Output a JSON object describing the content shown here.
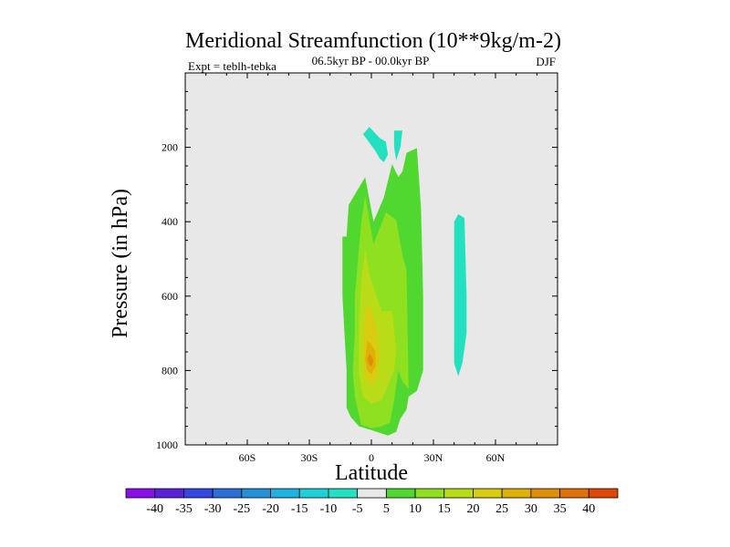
{
  "chart_data": {
    "type": "contour",
    "title": "Meridional Streamfunction (10**9kg/m-2)",
    "subtitle": "06.5kyr BP - 00.0kyr BP",
    "left_label": "Expt = teblh-tebka",
    "right_label": "DJF",
    "xlabel": "Latitude",
    "ylabel": "Pressure (in hPa)",
    "xlim": [
      -90,
      90
    ],
    "ylim": [
      1000,
      0
    ],
    "x_ticks": [
      {
        "value": -60,
        "label": "60S"
      },
      {
        "value": -30,
        "label": "30S"
      },
      {
        "value": 0,
        "label": "0"
      },
      {
        "value": 30,
        "label": "30N"
      },
      {
        "value": 60,
        "label": "60N"
      }
    ],
    "y_ticks": [
      {
        "value": 200,
        "label": "200"
      },
      {
        "value": 400,
        "label": "400"
      },
      {
        "value": 600,
        "label": "600"
      },
      {
        "value": 800,
        "label": "800"
      },
      {
        "value": 1000,
        "label": "1000"
      }
    ],
    "background_color": "#e8e8e8",
    "contour_levels": [
      -40,
      -35,
      -30,
      -25,
      -20,
      -15,
      -10,
      -5,
      5,
      10,
      15,
      20,
      25,
      30,
      35,
      40
    ],
    "colorbar_colors": [
      "#8b10e8",
      "#5a22d8",
      "#3346e0",
      "#2a6ed8",
      "#2490d8",
      "#1eb2e0",
      "#1ed0d8",
      "#22e0c0",
      "#e8e8e8",
      "#50d830",
      "#8ee020",
      "#b8dc18",
      "#d8cc10",
      "#e0b008",
      "#e09008",
      "#e07008",
      "#e04808"
    ],
    "regions": [
      {
        "level": 5,
        "color": "#50d830",
        "points": [
          [
            -14,
            440
          ],
          [
            -12,
            440
          ],
          [
            -11,
            355
          ],
          [
            -3,
            280
          ],
          [
            1,
            400
          ],
          [
            6,
            335
          ],
          [
            10,
            245
          ],
          [
            13,
            280
          ],
          [
            15,
            265
          ],
          [
            17,
            215
          ],
          [
            22,
            202
          ],
          [
            24,
            365
          ],
          [
            25,
            600
          ],
          [
            25,
            800
          ],
          [
            22,
            855
          ],
          [
            18,
            870
          ],
          [
            17,
            905
          ],
          [
            14,
            930
          ],
          [
            12,
            965
          ],
          [
            8,
            975
          ],
          [
            0,
            960
          ],
          [
            -6,
            950
          ],
          [
            -10,
            925
          ],
          [
            -12,
            900
          ],
          [
            -12,
            800
          ],
          [
            -13,
            700
          ],
          [
            -14,
            600
          ]
        ]
      },
      {
        "level": 10,
        "color": "#8ee020",
        "points": [
          [
            -8,
            600
          ],
          [
            -5,
            405
          ],
          [
            -3,
            330
          ],
          [
            1,
            460
          ],
          [
            7,
            375
          ],
          [
            12,
            395
          ],
          [
            15,
            490
          ],
          [
            17,
            530
          ],
          [
            18,
            850
          ],
          [
            15,
            830
          ],
          [
            13,
            800
          ],
          [
            11,
            880
          ],
          [
            9,
            940
          ],
          [
            5,
            950
          ],
          [
            0,
            955
          ],
          [
            -5,
            945
          ],
          [
            -8,
            870
          ],
          [
            -9,
            800
          ],
          [
            -8,
            700
          ]
        ]
      },
      {
        "level": 15,
        "color": "#b8dc18",
        "points": [
          [
            -5,
            560
          ],
          [
            -3,
            475
          ],
          [
            -1,
            540
          ],
          [
            2,
            590
          ],
          [
            5,
            640
          ],
          [
            10,
            640
          ],
          [
            12,
            740
          ],
          [
            11,
            800
          ],
          [
            8,
            840
          ],
          [
            5,
            880
          ],
          [
            0,
            890
          ],
          [
            -4,
            870
          ],
          [
            -6,
            810
          ],
          [
            -6,
            700
          ]
        ]
      },
      {
        "level": 20,
        "color": "#d8cc10",
        "points": [
          [
            -3,
            640
          ],
          [
            -1,
            620
          ],
          [
            1,
            660
          ],
          [
            3,
            700
          ],
          [
            4,
            760
          ],
          [
            3,
            820
          ],
          [
            0,
            840
          ],
          [
            -3,
            820
          ],
          [
            -4,
            760
          ],
          [
            -4,
            700
          ]
        ]
      },
      {
        "level": 25,
        "color": "#e0b008",
        "points": [
          [
            -2,
            720
          ],
          [
            0,
            730
          ],
          [
            2,
            750
          ],
          [
            2,
            790
          ],
          [
            0,
            810
          ],
          [
            -2,
            800
          ],
          [
            -3,
            770
          ]
        ]
      },
      {
        "level": 30,
        "color": "#e09008",
        "points": [
          [
            -1,
            755
          ],
          [
            0,
            760
          ],
          [
            1,
            775
          ],
          [
            0,
            790
          ],
          [
            -1,
            785
          ],
          [
            -2,
            770
          ]
        ]
      },
      {
        "level": -5,
        "color": "#22e0c0",
        "points": [
          [
            -4,
            165
          ],
          [
            -1,
            145
          ],
          [
            4,
            175
          ],
          [
            7,
            185
          ],
          [
            8,
            220
          ],
          [
            6,
            240
          ],
          [
            4,
            230
          ],
          [
            2,
            210
          ],
          [
            0,
            195
          ],
          [
            -2,
            180
          ]
        ]
      },
      {
        "level": -5,
        "color": "#22e0c0",
        "points": [
          [
            11,
            155
          ],
          [
            15,
            155
          ],
          [
            14,
            200
          ],
          [
            12,
            235
          ],
          [
            11,
            200
          ]
        ]
      },
      {
        "level": -5,
        "color": "#22e0c0",
        "points": [
          [
            42,
            380
          ],
          [
            45,
            390
          ],
          [
            46,
            600
          ],
          [
            46,
            700
          ],
          [
            44,
            780
          ],
          [
            42,
            815
          ],
          [
            40,
            780
          ],
          [
            40,
            600
          ],
          [
            40,
            400
          ]
        ]
      }
    ]
  }
}
